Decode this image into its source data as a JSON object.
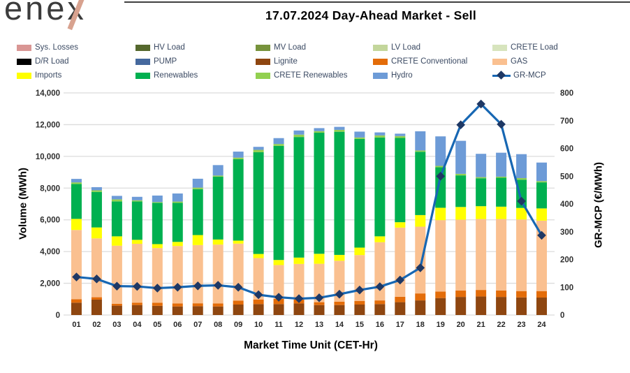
{
  "logo": {
    "text": "enex"
  },
  "header": {
    "title": "17.07.2024  Day-Ahead Market - Sell"
  },
  "legend": {
    "items": [
      {
        "label": "Sys. Losses",
        "color": "#d99694",
        "type": "swatch"
      },
      {
        "label": "HV Load",
        "color": "#55682d",
        "type": "swatch"
      },
      {
        "label": "MV Load",
        "color": "#77933c",
        "type": "swatch"
      },
      {
        "label": "LV Load",
        "color": "#c3d69b",
        "type": "swatch"
      },
      {
        "label": "CRETE Load",
        "color": "#d7e4bd",
        "type": "swatch"
      },
      {
        "label": "D/R Load",
        "color": "#000000",
        "type": "swatch"
      },
      {
        "label": "PUMP",
        "color": "#45699e",
        "type": "swatch"
      },
      {
        "label": "Lignite",
        "color": "#8e4610",
        "type": "swatch"
      },
      {
        "label": "CRETE Conventional",
        "color": "#e36c09",
        "type": "swatch"
      },
      {
        "label": "GAS",
        "color": "#fac090",
        "type": "swatch"
      },
      {
        "label": "Imports",
        "color": "#ffff00",
        "type": "swatch"
      },
      {
        "label": "Renewables",
        "color": "#00b050",
        "type": "swatch"
      },
      {
        "label": "CRETE Renewables",
        "color": "#92d050",
        "type": "swatch"
      },
      {
        "label": "Hydro",
        "color": "#6d9bd7",
        "type": "swatch"
      },
      {
        "label": "GR-MCP",
        "color": "#1767b3",
        "type": "line",
        "marker_color": "#1f3864"
      }
    ]
  },
  "chart_data": {
    "type": "bar",
    "subtype": "stacked-bars-with-line",
    "title": "17.07.2024  Day-Ahead Market - Sell",
    "xlabel": "Market Time Unit (CET-Hr)",
    "grid": "horizontal",
    "categories": [
      "01",
      "02",
      "03",
      "04",
      "05",
      "06",
      "07",
      "08",
      "09",
      "10",
      "11",
      "12",
      "13",
      "14",
      "15",
      "16",
      "17",
      "18",
      "19",
      "20",
      "21",
      "22",
      "23",
      "24"
    ],
    "series": [
      {
        "name": "Lignite",
        "color": "#8e4610",
        "values": [
          780,
          970,
          590,
          630,
          580,
          540,
          560,
          540,
          660,
          690,
          690,
          730,
          630,
          630,
          660,
          690,
          810,
          920,
          1070,
          1140,
          1170,
          1140,
          1110,
          1100
        ]
      },
      {
        "name": "CRETE Conventional",
        "color": "#e36c09",
        "values": [
          220,
          150,
          120,
          150,
          190,
          190,
          180,
          190,
          250,
          290,
          330,
          290,
          180,
          210,
          220,
          230,
          340,
          440,
          410,
          400,
          410,
          410,
          400,
          410
        ]
      },
      {
        "name": "GAS",
        "color": "#fac090",
        "values": [
          4360,
          3710,
          3660,
          3710,
          3450,
          3620,
          3670,
          3710,
          3590,
          2610,
          2130,
          2200,
          2420,
          2580,
          2900,
          3670,
          4360,
          4210,
          4500,
          4470,
          4470,
          4500,
          4510,
          4440
        ]
      },
      {
        "name": "Imports",
        "color": "#ffff00",
        "values": [
          700,
          690,
          590,
          250,
          250,
          260,
          630,
          320,
          190,
          260,
          320,
          400,
          630,
          370,
          470,
          370,
          340,
          730,
          780,
          800,
          810,
          780,
          730,
          770
        ]
      },
      {
        "name": "Renewables",
        "color": "#00b050",
        "values": [
          2200,
          2240,
          2200,
          2420,
          2600,
          2460,
          2890,
          3960,
          5130,
          6410,
          7190,
          7600,
          7630,
          7760,
          6850,
          6230,
          5310,
          3990,
          2550,
          1990,
          1760,
          1820,
          1780,
          1640
        ]
      },
      {
        "name": "CRETE Renewables",
        "color": "#92d050",
        "values": [
          100,
          100,
          130,
          70,
          50,
          80,
          100,
          70,
          100,
          150,
          120,
          150,
          100,
          120,
          90,
          130,
          120,
          80,
          90,
          100,
          70,
          70,
          100,
          80
        ]
      },
      {
        "name": "Hydro",
        "color": "#6d9bd7",
        "values": [
          220,
          200,
          220,
          220,
          410,
          510,
          560,
          660,
          380,
          190,
          370,
          260,
          190,
          190,
          370,
          190,
          150,
          1210,
          1860,
          2080,
          1470,
          1510,
          1510,
          1170
        ]
      }
    ],
    "line": {
      "name": "GR-MCP",
      "axis": "right",
      "color": "#1767b3",
      "marker_color": "#1f3864",
      "values": [
        137,
        130,
        104,
        103,
        97,
        100,
        105,
        107,
        100,
        73,
        64,
        59,
        62,
        75,
        90,
        102,
        126,
        170,
        500,
        685,
        760,
        687,
        410,
        287
      ]
    },
    "left_axis": {
      "label": "Volume (MWh)",
      "min": 0,
      "max": 14000,
      "step": 2000,
      "ticks": [
        "0",
        "2,000",
        "4,000",
        "6,000",
        "8,000",
        "10,000",
        "12,000",
        "14,000"
      ]
    },
    "right_axis": {
      "label": "GR-MCP (€/MWh)",
      "min": 0,
      "max": 800,
      "step": 100,
      "ticks": [
        "0",
        "100",
        "200",
        "300",
        "400",
        "500",
        "600",
        "700",
        "800"
      ]
    },
    "legend_position": "top"
  }
}
